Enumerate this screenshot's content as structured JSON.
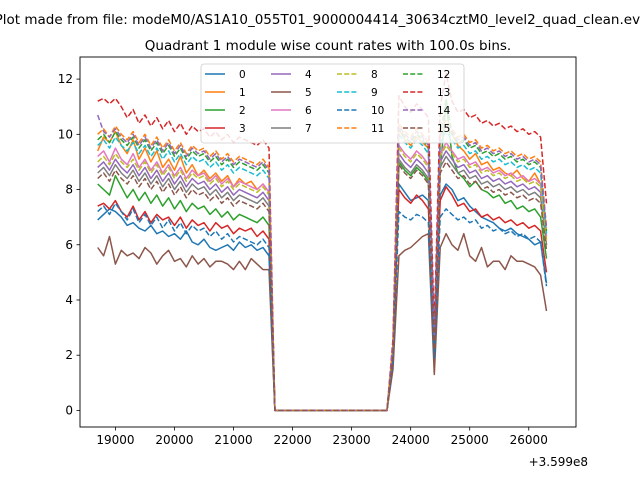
{
  "chart_data": {
    "type": "line",
    "suptitle": "Plot made from file: modeM0/AS1A10_055T01_9000004414_30634cztM0_level2_quad_clean.evt",
    "title": "Quadrant 1 module wise count rates with 100.0s bins.",
    "xlabel": "",
    "ylabel": "",
    "x_offset_label": "+3.599e8",
    "xlim": [
      18400,
      26800
    ],
    "ylim": [
      -0.6,
      12.8
    ],
    "xticks": [
      19000,
      20000,
      21000,
      22000,
      23000,
      24000,
      25000,
      26000
    ],
    "xtick_labels": [
      "19000",
      "20000",
      "21000",
      "22000",
      "23000",
      "24000",
      "25000",
      "26000"
    ],
    "yticks": [
      0,
      2,
      4,
      6,
      8,
      10,
      12
    ],
    "ytick_labels": [
      "0",
      "2",
      "4",
      "6",
      "8",
      "10",
      "12"
    ],
    "x": [
      18700,
      18800,
      18900,
      19000,
      19100,
      19200,
      19300,
      19400,
      19500,
      19600,
      19700,
      19800,
      19900,
      20000,
      20100,
      20200,
      20300,
      20400,
      20500,
      20600,
      20700,
      20800,
      20900,
      21000,
      21100,
      21200,
      21300,
      21400,
      21500,
      21600,
      21700,
      23600,
      23700,
      23800,
      23900,
      24000,
      24100,
      24200,
      24300,
      24400,
      24500,
      24600,
      24700,
      24800,
      24900,
      25000,
      25100,
      25200,
      25300,
      25400,
      25500,
      25600,
      25700,
      25800,
      25900,
      26000,
      26100,
      26200,
      26300
    ],
    "series": [
      {
        "name": "0",
        "color": "#1f77b4",
        "dashed": false,
        "values": [
          6.9,
          7.1,
          7.3,
          7.2,
          7.0,
          6.7,
          6.8,
          6.6,
          6.5,
          6.7,
          6.4,
          6.5,
          6.3,
          6.4,
          6.2,
          6.5,
          6.1,
          6.0,
          6.2,
          5.9,
          5.8,
          5.9,
          6.0,
          5.8,
          6.1,
          5.9,
          6.0,
          5.8,
          5.9,
          5.6,
          0,
          0,
          1.8,
          8.2,
          7.9,
          7.6,
          7.7,
          7.8,
          7.6,
          2.0,
          7.8,
          8.2,
          8.0,
          7.6,
          7.7,
          7.4,
          7.2,
          7.0,
          6.9,
          6.8,
          6.6,
          6.5,
          6.6,
          6.4,
          6.3,
          6.2,
          6.0,
          6.1,
          4.6
        ]
      },
      {
        "name": "1",
        "color": "#ff7f0e",
        "dashed": false,
        "values": [
          9.4,
          9.9,
          9.7,
          10.1,
          9.6,
          9.3,
          9.8,
          9.1,
          9.5,
          9.0,
          9.4,
          8.8,
          9.1,
          8.7,
          9.2,
          8.6,
          8.9,
          8.5,
          8.7,
          8.4,
          8.6,
          8.3,
          8.5,
          8.1,
          8.4,
          8.2,
          8.3,
          8.0,
          8.2,
          7.9,
          0,
          0,
          2.3,
          10.2,
          9.8,
          9.6,
          9.9,
          9.7,
          9.5,
          2.6,
          9.9,
          10.3,
          10.0,
          9.6,
          9.4,
          9.1,
          9.3,
          8.9,
          9.0,
          8.7,
          8.8,
          8.6,
          8.5,
          8.7,
          8.4,
          8.3,
          8.6,
          8.2,
          6.0
        ]
      },
      {
        "name": "2",
        "color": "#2ca02c",
        "dashed": false,
        "values": [
          8.2,
          8.0,
          7.8,
          8.5,
          8.1,
          7.7,
          8.0,
          7.6,
          7.9,
          7.5,
          7.8,
          7.4,
          7.7,
          7.3,
          7.6,
          7.2,
          7.5,
          7.3,
          7.4,
          7.1,
          7.3,
          7.0,
          7.2,
          6.9,
          7.1,
          7.0,
          6.9,
          6.8,
          7.0,
          6.7,
          0,
          0,
          2.0,
          9.0,
          8.7,
          8.5,
          8.8,
          8.6,
          8.3,
          2.3,
          8.7,
          11.2,
          9.2,
          8.6,
          8.4,
          8.1,
          8.3,
          8.0,
          7.9,
          7.7,
          7.8,
          7.5,
          7.6,
          7.3,
          7.4,
          7.2,
          7.3,
          7.0,
          5.5
        ]
      },
      {
        "name": "3",
        "color": "#d62728",
        "dashed": false,
        "values": [
          7.4,
          7.5,
          7.3,
          7.6,
          7.2,
          7.0,
          7.4,
          6.9,
          7.2,
          6.8,
          7.1,
          6.9,
          7.0,
          6.7,
          7.0,
          6.6,
          6.9,
          6.7,
          6.8,
          6.5,
          6.8,
          6.6,
          6.7,
          6.4,
          6.6,
          6.5,
          6.6,
          6.3,
          6.5,
          6.2,
          0,
          0,
          1.9,
          8.0,
          7.7,
          7.5,
          7.8,
          7.6,
          7.3,
          2.2,
          7.6,
          8.1,
          7.8,
          7.4,
          7.5,
          7.2,
          7.3,
          7.0,
          7.1,
          6.9,
          7.0,
          6.8,
          6.9,
          6.7,
          6.8,
          6.6,
          6.7,
          6.5,
          5.0
        ]
      },
      {
        "name": "4",
        "color": "#9467bd",
        "dashed": false,
        "values": [
          8.8,
          9.0,
          8.7,
          9.1,
          8.8,
          8.6,
          8.9,
          8.5,
          8.8,
          8.4,
          8.7,
          8.3,
          8.6,
          8.2,
          8.5,
          8.1,
          8.4,
          8.2,
          8.3,
          8.0,
          8.2,
          7.9,
          8.1,
          7.8,
          8.0,
          7.9,
          7.8,
          7.7,
          7.9,
          7.6,
          0,
          0,
          2.1,
          9.3,
          9.0,
          8.8,
          9.1,
          8.9,
          8.6,
          2.4,
          9.0,
          9.4,
          9.1,
          8.8,
          8.9,
          8.6,
          8.7,
          8.4,
          8.5,
          8.3,
          8.4,
          8.2,
          8.3,
          8.1,
          8.2,
          8.0,
          8.1,
          7.9,
          6.2
        ]
      },
      {
        "name": "5",
        "color": "#8c564b",
        "dashed": false,
        "values": [
          5.9,
          5.6,
          6.3,
          5.3,
          5.8,
          5.6,
          5.7,
          5.5,
          5.9,
          5.7,
          5.3,
          5.6,
          5.8,
          5.4,
          5.5,
          5.2,
          5.6,
          5.3,
          5.5,
          5.2,
          5.4,
          5.4,
          5.3,
          5.1,
          5.4,
          5.1,
          5.5,
          5.3,
          5.1,
          5.1,
          0,
          0,
          1.5,
          5.6,
          5.8,
          5.9,
          6.1,
          6.3,
          6.4,
          1.3,
          5.9,
          6.4,
          6.0,
          5.8,
          6.4,
          5.6,
          5.4,
          5.9,
          5.2,
          5.4,
          5.4,
          5.1,
          5.6,
          5.4,
          5.4,
          5.3,
          5.2,
          4.9,
          3.6
        ]
      },
      {
        "name": "6",
        "color": "#e377c2",
        "dashed": false,
        "values": [
          9.2,
          9.4,
          9.0,
          9.5,
          9.1,
          8.9,
          9.3,
          8.8,
          9.1,
          8.7,
          9.0,
          8.6,
          8.9,
          8.5,
          8.8,
          8.4,
          8.7,
          8.5,
          8.6,
          8.3,
          8.5,
          8.2,
          8.4,
          8.1,
          8.3,
          8.2,
          8.1,
          8.0,
          8.2,
          7.9,
          0,
          0,
          2.2,
          9.6,
          9.3,
          9.1,
          9.4,
          9.2,
          8.9,
          2.5,
          9.3,
          9.7,
          9.4,
          9.1,
          9.2,
          8.9,
          9.0,
          8.7,
          8.8,
          8.6,
          8.7,
          8.5,
          8.6,
          8.4,
          8.5,
          8.3,
          8.4,
          8.2,
          6.3
        ]
      },
      {
        "name": "7",
        "color": "#7f7f7f",
        "dashed": false,
        "values": [
          8.6,
          8.8,
          8.5,
          8.9,
          8.6,
          8.4,
          8.7,
          8.3,
          8.6,
          8.2,
          8.5,
          8.1,
          8.4,
          8.0,
          8.3,
          7.9,
          8.2,
          8.0,
          8.1,
          7.8,
          8.0,
          7.7,
          7.9,
          7.6,
          7.8,
          7.7,
          7.6,
          7.5,
          7.7,
          7.4,
          0,
          0,
          2.0,
          9.1,
          8.8,
          8.6,
          8.9,
          8.7,
          8.4,
          2.3,
          8.8,
          9.2,
          8.9,
          8.6,
          8.7,
          8.4,
          8.5,
          8.2,
          8.3,
          8.1,
          8.2,
          8.0,
          8.1,
          7.9,
          8.0,
          7.8,
          7.9,
          7.7,
          6.0
        ]
      },
      {
        "name": "8",
        "color": "#bcbd22",
        "dashed": true,
        "values": [
          9.0,
          9.2,
          8.9,
          9.3,
          9.0,
          8.8,
          9.1,
          8.7,
          9.0,
          8.6,
          8.9,
          8.5,
          8.8,
          8.4,
          8.7,
          8.3,
          8.6,
          8.4,
          8.5,
          8.2,
          8.4,
          8.1,
          8.3,
          8.0,
          8.2,
          8.1,
          8.0,
          7.9,
          8.1,
          7.8,
          0,
          0,
          2.1,
          9.5,
          9.2,
          9.0,
          9.3,
          9.1,
          8.8,
          2.4,
          9.2,
          9.6,
          9.3,
          9.0,
          9.1,
          8.8,
          8.9,
          8.6,
          8.7,
          8.5,
          8.6,
          8.4,
          8.5,
          8.3,
          8.4,
          8.2,
          8.3,
          8.1,
          6.1
        ]
      },
      {
        "name": "9",
        "color": "#17becf",
        "dashed": true,
        "values": [
          9.6,
          9.8,
          9.5,
          9.9,
          9.6,
          9.4,
          9.7,
          9.3,
          9.6,
          9.2,
          9.5,
          9.1,
          9.4,
          9.0,
          9.3,
          8.9,
          9.2,
          9.0,
          9.1,
          8.8,
          9.0,
          8.7,
          8.9,
          8.6,
          8.8,
          8.7,
          8.6,
          8.5,
          8.7,
          8.4,
          0,
          0,
          2.3,
          10.0,
          9.7,
          9.5,
          9.8,
          9.6,
          9.3,
          2.6,
          9.7,
          10.1,
          9.8,
          9.5,
          9.6,
          9.3,
          9.4,
          9.1,
          9.2,
          9.0,
          9.1,
          8.9,
          9.0,
          8.8,
          8.9,
          8.7,
          8.8,
          8.6,
          6.4
        ]
      },
      {
        "name": "10",
        "color": "#1f77b4",
        "dashed": true,
        "values": [
          7.2,
          7.4,
          7.1,
          7.5,
          7.2,
          6.9,
          7.3,
          6.8,
          7.1,
          6.7,
          7.0,
          6.6,
          6.9,
          6.5,
          6.8,
          6.4,
          6.7,
          6.5,
          6.6,
          6.3,
          6.5,
          6.2,
          6.4,
          6.1,
          6.3,
          6.2,
          6.1,
          6.0,
          6.2,
          5.9,
          0,
          0,
          1.8,
          7.2,
          7.0,
          6.9,
          7.1,
          7.0,
          6.8,
          1.9,
          7.0,
          7.3,
          7.1,
          6.9,
          7.0,
          6.8,
          6.9,
          6.6,
          6.7,
          6.5,
          6.6,
          6.4,
          6.5,
          6.3,
          6.4,
          6.2,
          6.3,
          6.1,
          4.5
        ]
      },
      {
        "name": "11",
        "color": "#ff7f0e",
        "dashed": true,
        "values": [
          10.0,
          10.2,
          9.9,
          10.3,
          10.0,
          9.8,
          10.1,
          9.7,
          10.0,
          9.6,
          9.9,
          9.5,
          9.8,
          9.4,
          9.7,
          9.3,
          9.6,
          9.4,
          9.5,
          9.2,
          9.4,
          9.1,
          9.3,
          9.0,
          9.2,
          9.1,
          9.0,
          8.9,
          9.1,
          8.8,
          0,
          0,
          2.4,
          10.4,
          10.1,
          9.9,
          10.2,
          10.0,
          9.7,
          2.7,
          10.1,
          10.5,
          10.2,
          9.9,
          10.0,
          9.7,
          9.8,
          9.5,
          9.6,
          9.4,
          9.5,
          9.3,
          9.4,
          9.2,
          9.3,
          9.1,
          9.2,
          9.0,
          6.6
        ]
      },
      {
        "name": "12",
        "color": "#2ca02c",
        "dashed": true,
        "values": [
          9.8,
          10.0,
          9.7,
          10.1,
          9.8,
          9.6,
          9.9,
          9.5,
          9.8,
          9.4,
          9.7,
          9.3,
          9.6,
          9.2,
          9.5,
          9.1,
          9.4,
          9.2,
          9.3,
          9.0,
          9.2,
          8.9,
          9.1,
          8.8,
          9.0,
          8.9,
          8.8,
          8.7,
          8.9,
          8.6,
          0,
          0,
          2.3,
          10.2,
          9.9,
          9.7,
          10.0,
          9.8,
          9.5,
          2.6,
          9.9,
          11.3,
          10.0,
          9.7,
          9.8,
          9.5,
          9.6,
          9.3,
          9.4,
          9.2,
          9.3,
          9.1,
          9.2,
          9.0,
          9.1,
          8.9,
          9.0,
          8.8,
          6.5
        ]
      },
      {
        "name": "13",
        "color": "#d62728",
        "dashed": true,
        "values": [
          11.2,
          11.3,
          11.1,
          11.3,
          11.0,
          10.6,
          10.9,
          10.4,
          10.7,
          10.3,
          10.6,
          10.2,
          10.5,
          10.1,
          10.4,
          10.0,
          10.3,
          10.1,
          10.2,
          9.9,
          10.1,
          9.8,
          10.0,
          9.7,
          9.9,
          9.8,
          9.7,
          9.6,
          9.8,
          9.5,
          0,
          0,
          2.6,
          11.4,
          11.0,
          10.8,
          11.1,
          10.9,
          10.6,
          3.0,
          11.0,
          12.2,
          11.2,
          10.8,
          10.9,
          10.6,
          10.7,
          10.4,
          10.5,
          10.3,
          10.4,
          10.2,
          10.3,
          10.1,
          10.2,
          10.0,
          10.1,
          9.9,
          7.5
        ]
      },
      {
        "name": "14",
        "color": "#9467bd",
        "dashed": true,
        "values": [
          10.7,
          10.1,
          9.9,
          10.2,
          9.9,
          9.7,
          10.0,
          9.6,
          9.9,
          9.5,
          9.8,
          9.4,
          9.7,
          9.3,
          9.6,
          9.2,
          9.5,
          9.3,
          9.4,
          9.1,
          9.3,
          9.0,
          9.2,
          8.9,
          9.1,
          9.0,
          8.9,
          8.8,
          9.0,
          8.7,
          0,
          0,
          2.4,
          10.3,
          10.0,
          9.8,
          10.1,
          9.9,
          9.6,
          2.7,
          10.0,
          10.4,
          10.1,
          9.8,
          9.9,
          9.6,
          9.7,
          9.4,
          9.5,
          9.3,
          9.4,
          9.2,
          9.3,
          9.1,
          9.2,
          9.0,
          9.1,
          8.9,
          6.6
        ]
      },
      {
        "name": "15",
        "color": "#8c564b",
        "dashed": true,
        "values": [
          8.4,
          8.6,
          8.3,
          8.7,
          8.4,
          8.2,
          8.5,
          8.1,
          8.4,
          8.0,
          8.3,
          7.9,
          8.2,
          7.8,
          8.1,
          7.7,
          8.0,
          7.8,
          7.9,
          7.6,
          7.8,
          7.5,
          7.7,
          7.4,
          7.6,
          7.5,
          7.4,
          7.3,
          7.5,
          7.2,
          0,
          0,
          2.0,
          8.9,
          8.6,
          8.4,
          8.7,
          8.5,
          8.2,
          2.2,
          8.6,
          9.0,
          8.7,
          8.4,
          8.5,
          8.2,
          8.3,
          8.0,
          8.1,
          7.9,
          8.0,
          7.8,
          7.9,
          7.7,
          7.8,
          7.6,
          7.7,
          7.5,
          5.8
        ]
      }
    ]
  }
}
